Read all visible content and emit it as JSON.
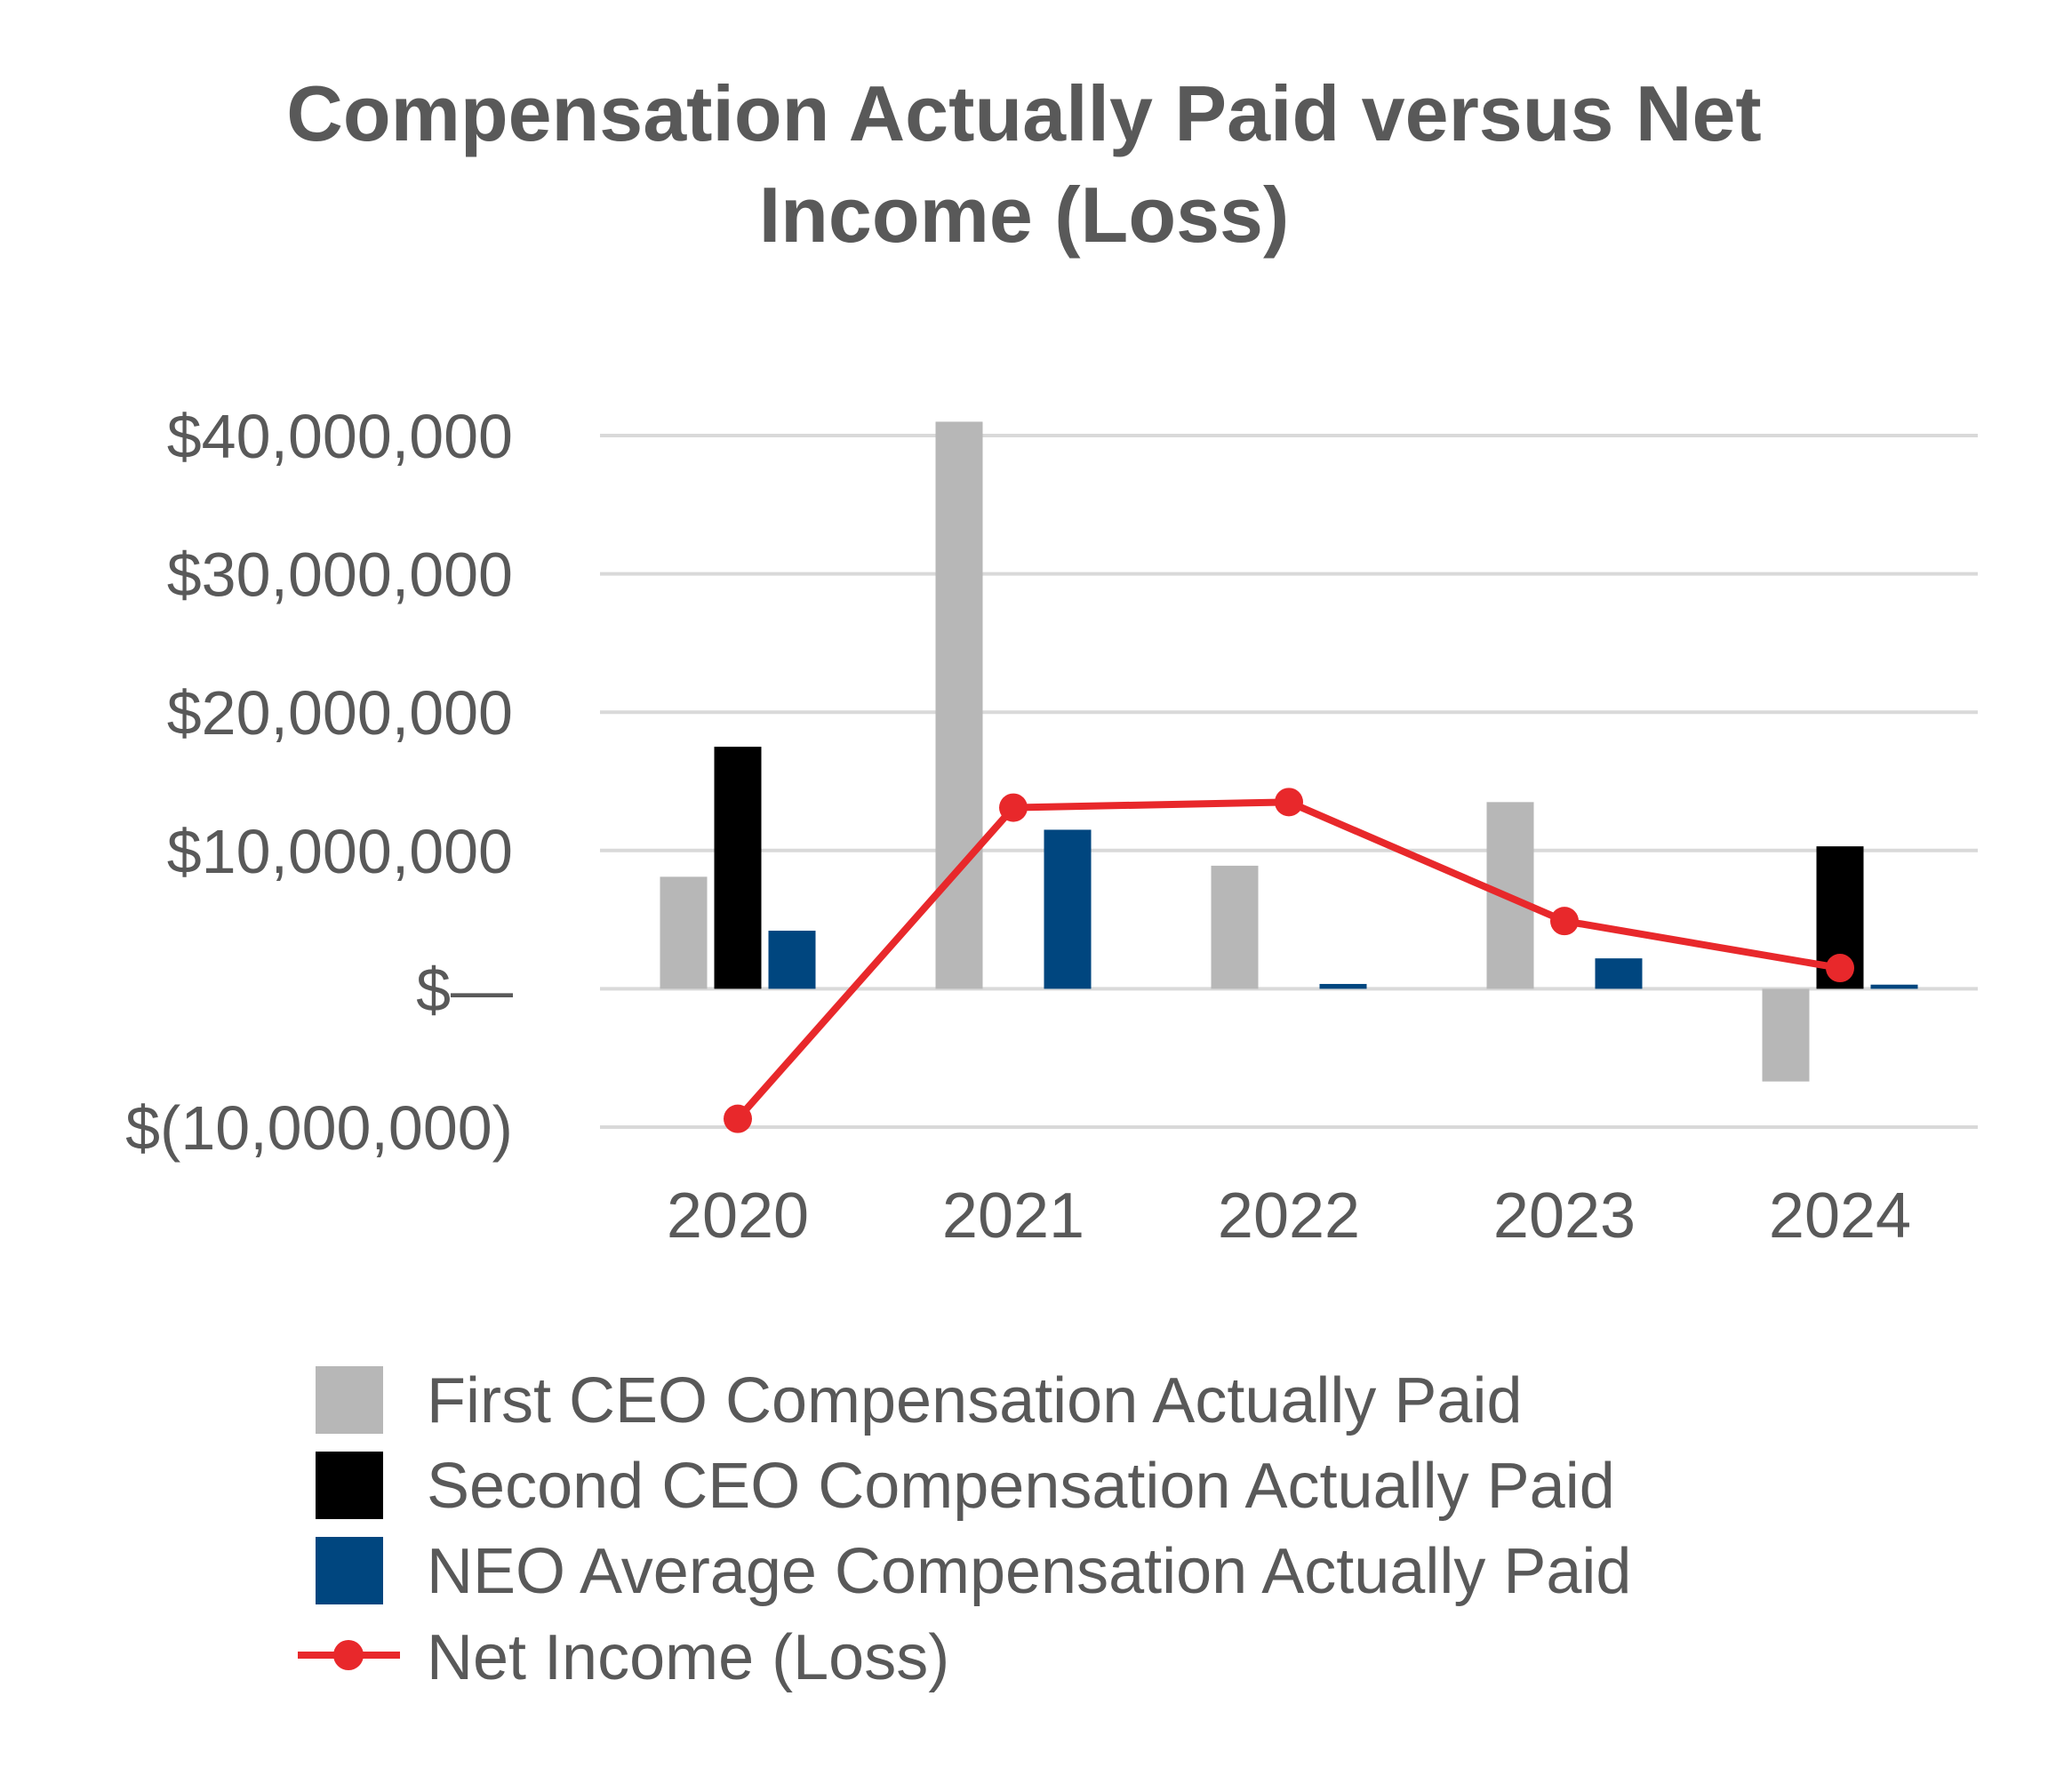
{
  "chart_data": {
    "type": "bar",
    "title": "Compensation Actually Paid versus Net Income (Loss)",
    "title_lines": [
      "Compensation Actually Paid versus Net",
      "Income (Loss)"
    ],
    "categories": [
      "2020",
      "2021",
      "2022",
      "2023",
      "2024"
    ],
    "ylim": [
      -10000000,
      40000000
    ],
    "yticks": [
      40000000,
      30000000,
      20000000,
      10000000,
      0,
      -10000000
    ],
    "ytick_labels": [
      "$40,000,000",
      "$30,000,000",
      "$20,000,000",
      "$10,000,000",
      "$—",
      "$(10,000,000)"
    ],
    "grid": true,
    "legend_position": "bottom",
    "series": [
      {
        "name": "First CEO Compensation Actually Paid",
        "kind": "bar",
        "color": "#b7b7b7",
        "values": [
          8100000,
          41000000,
          8900000,
          13500000,
          -6700000
        ]
      },
      {
        "name": "Second CEO Compensation Actually Paid",
        "kind": "bar",
        "color": "#000000",
        "values": [
          17500000,
          null,
          null,
          null,
          10300000
        ]
      },
      {
        "name": "NEO Average Compensation Actually Paid",
        "kind": "bar",
        "color": "#00467f",
        "values": [
          4200000,
          11500000,
          350000,
          2200000,
          300000
        ]
      },
      {
        "name": "Net Income (Loss)",
        "kind": "line",
        "color": "#e8282b",
        "values": [
          -9400000,
          13100000,
          13500000,
          4900000,
          1500000
        ]
      }
    ]
  }
}
